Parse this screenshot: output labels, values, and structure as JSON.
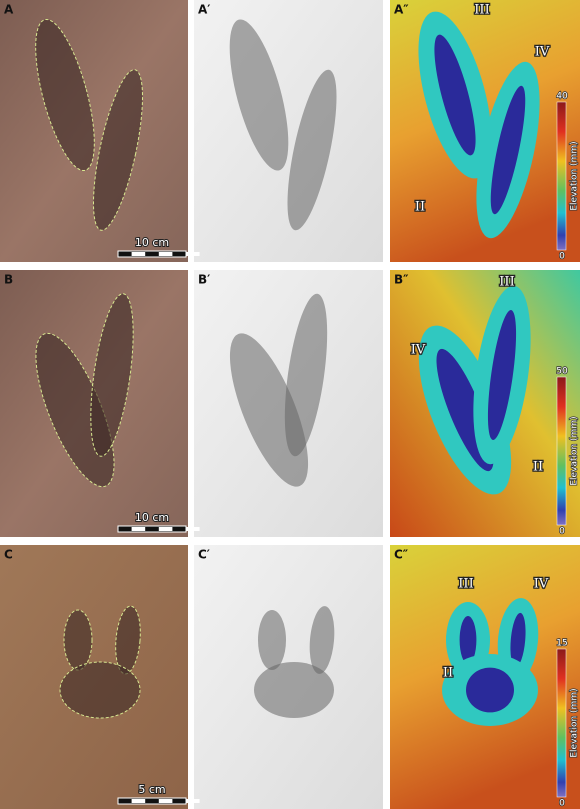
{
  "panels": [
    [
      {
        "label": "A",
        "scale_bar": "10 cm"
      },
      {
        "label": "A′"
      },
      {
        "label": "A″",
        "digits": [
          "III",
          "IV",
          "II"
        ],
        "colorbar": {
          "max": "40",
          "min": "0",
          "title": "Elevation (mm)"
        }
      }
    ],
    [
      {
        "label": "B",
        "scale_bar": "10 cm"
      },
      {
        "label": "B′"
      },
      {
        "label": "B″",
        "digits": [
          "III",
          "IV",
          "II"
        ],
        "colorbar": {
          "max": "50",
          "min": "0",
          "title": "Elevation (mm)"
        }
      }
    ],
    [
      {
        "label": "C",
        "scale_bar": "5 cm"
      },
      {
        "label": "C′"
      },
      {
        "label": "C″",
        "digits": [
          "III",
          "IV",
          "II"
        ],
        "colorbar": {
          "max": "15",
          "min": "0",
          "title": "Elevation (mm)"
        }
      }
    ]
  ]
}
